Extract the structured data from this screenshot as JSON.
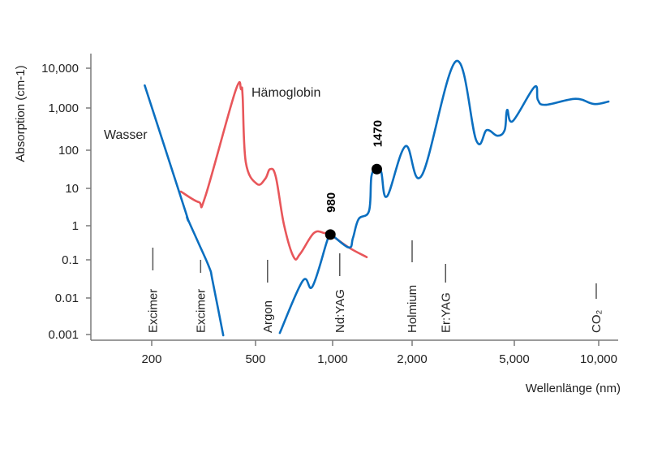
{
  "chart_data": {
    "type": "line",
    "title": "",
    "xlabel": "Wellenlänge (nm)",
    "ylabel": "Absorption (cm-1)",
    "xscale": "log",
    "yscale": "log",
    "xlim": [
      170,
      11500
    ],
    "ylim": [
      0.001,
      10000
    ],
    "grid": false,
    "x_ticks": [
      {
        "value": 200,
        "label": "200"
      },
      {
        "value": 500,
        "label": "500"
      },
      {
        "value": 1000,
        "label": "1,000"
      },
      {
        "value": 2000,
        "label": "2,000"
      },
      {
        "value": 5000,
        "label": "5,000"
      },
      {
        "value": 10000,
        "label": "10,000"
      }
    ],
    "y_ticks": [
      {
        "value": 10000,
        "label": "10,000"
      },
      {
        "value": 1000,
        "label": "1,000"
      },
      {
        "value": 100,
        "label": "100"
      },
      {
        "value": 10,
        "label": "10"
      },
      {
        "value": 1,
        "label": "1"
      },
      {
        "value": 0.1,
        "label": "0.1"
      },
      {
        "value": 0.01,
        "label": "0.01"
      },
      {
        "value": 0.001,
        "label": "0.001"
      }
    ],
    "series": [
      {
        "name": "Wasser",
        "color": "#0b6fc0",
        "segments": [
          [
            [
              188,
              3700
            ],
            [
              268,
              2.7
            ],
            [
              274,
              1.6
            ],
            [
              303,
              0.3
            ],
            [
              333,
              0.061
            ],
            [
              342,
              0.029
            ],
            [
              376,
              0.00095
            ]
          ],
          [
            [
              622,
              0.0011
            ],
            [
              764,
              0.028
            ],
            [
              834,
              0.02
            ],
            [
              951,
              0.35
            ],
            [
              980,
              0.55
            ],
            [
              1151,
              0.23
            ],
            [
              1194,
              0.44
            ],
            [
              1254,
              1.5
            ],
            [
              1374,
              2.5
            ],
            [
              1403,
              21
            ],
            [
              1470,
              32
            ],
            [
              1528,
              27
            ],
            [
              1607,
              6.1
            ],
            [
              1889,
              125
            ],
            [
              2183,
              22
            ],
            [
              2964,
              15000
            ],
            [
              3556,
              170
            ],
            [
              3908,
              300
            ],
            [
              4296,
              220
            ],
            [
              4586,
              300
            ],
            [
              4688,
              900
            ],
            [
              4932,
              490
            ],
            [
              5902,
              3400
            ],
            [
              6067,
              1600
            ],
            [
              6460,
              1200
            ],
            [
              8260,
              1700
            ],
            [
              9620,
              1260
            ],
            [
              10840,
              1450
            ]
          ]
        ]
      },
      {
        "name": "Hämoglobin",
        "color": "#e8565a",
        "segments": [
          [
            [
              259,
              8.2
            ],
            [
              303,
              4.3
            ],
            [
              321,
              6.1
            ],
            [
              418,
              2600
            ],
            [
              440,
              2950
            ],
            [
              446,
              2100
            ],
            [
              459,
              48
            ],
            [
              507,
              13
            ],
            [
              546,
              18
            ],
            [
              570,
              32
            ],
            [
              600,
              20
            ],
            [
              646,
              1.05
            ],
            [
              705,
              0.12
            ],
            [
              747,
              0.15
            ],
            [
              845,
              0.61
            ],
            [
              929,
              0.61
            ],
            [
              980,
              0.55
            ],
            [
              1151,
              0.23
            ],
            [
              1346,
              0.12
            ]
          ]
        ]
      }
    ],
    "highlight_points": [
      {
        "label": "980",
        "x": 980,
        "y": 0.55
      },
      {
        "label": "1470",
        "x": 1470,
        "y": 32
      }
    ],
    "lasers": [
      {
        "label": "Excimer",
        "x": 202
      },
      {
        "label": "Excimer",
        "x": 308
      },
      {
        "label": "Argon",
        "x": 557
      },
      {
        "label": "Nd:YAG",
        "x": 1064
      },
      {
        "label": "Holmium",
        "x": 2000
      },
      {
        "label": "Er:YAG",
        "x": 2700
      },
      {
        "label": "CO₂",
        "x": 9800
      }
    ],
    "legend": "inline-labels"
  }
}
